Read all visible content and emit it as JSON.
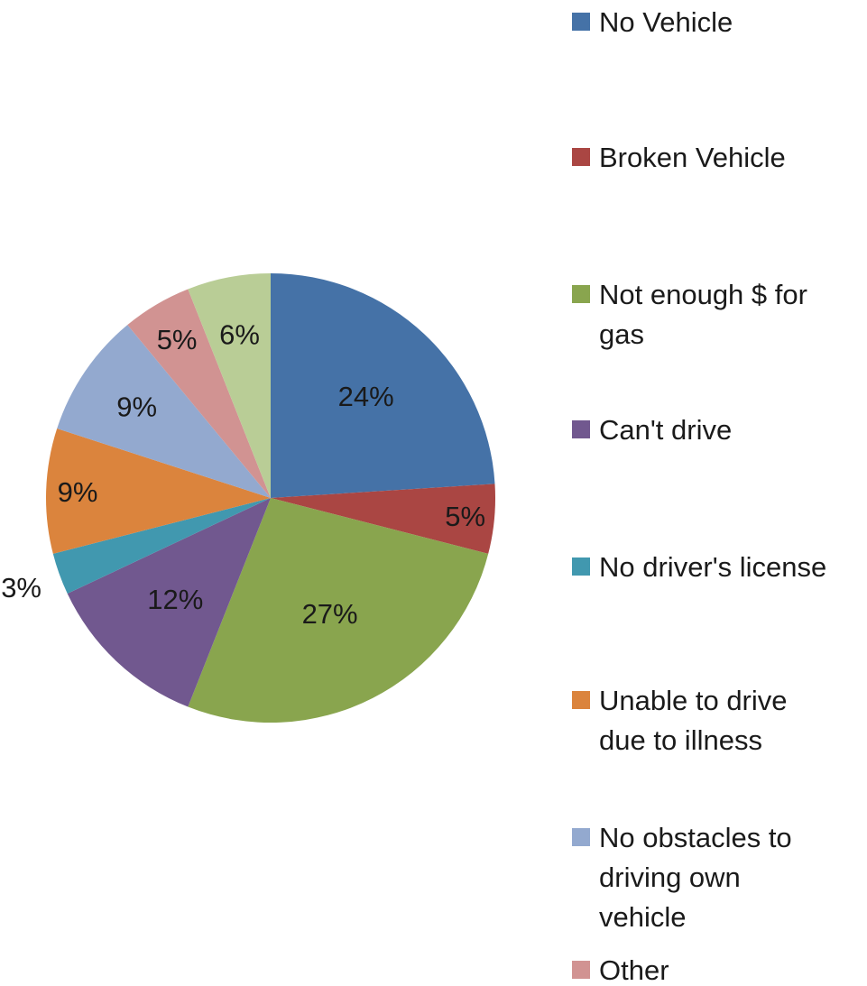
{
  "chart_data": {
    "type": "pie",
    "title": "",
    "unit": "%",
    "legend_position": "right",
    "slices": [
      {
        "label": "No Vehicle",
        "value": 24,
        "data_label": "24%",
        "color": "#4572A7"
      },
      {
        "label": "Broken Vehicle",
        "value": 5,
        "data_label": "5%",
        "color": "#AA4643"
      },
      {
        "label": "Not enough $ for gas",
        "value": 27,
        "data_label": "27%",
        "color": "#89A54E"
      },
      {
        "label": "Can't drive",
        "value": 12,
        "data_label": "12%",
        "color": "#71588F"
      },
      {
        "label": "No driver's license",
        "value": 3,
        "data_label": "3%",
        "color": "#4198AF"
      },
      {
        "label": "Unable to drive due to illness",
        "value": 9,
        "data_label": "9%",
        "color": "#DB843D"
      },
      {
        "label": "No obstacles to driving own vehicle",
        "value": 9,
        "data_label": "9%",
        "color": "#93A9CF"
      },
      {
        "label": "Other",
        "value": 5,
        "data_label": "5%",
        "color": "#D19392"
      },
      {
        "label": "",
        "value": 6,
        "data_label": "6%",
        "color": "#B9CD96"
      }
    ]
  }
}
